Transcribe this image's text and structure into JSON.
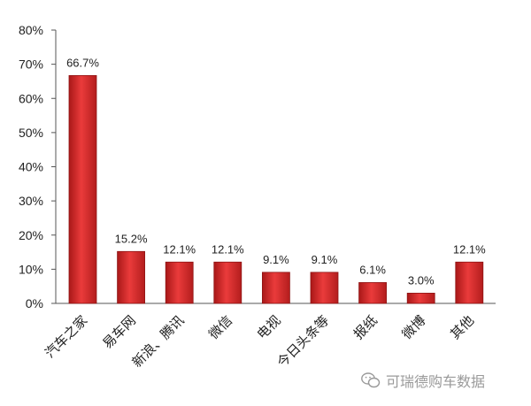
{
  "chart_data": {
    "type": "bar",
    "categories": [
      "汽车之家",
      "易车网",
      "新浪、腾讯",
      "微信",
      "电视",
      "今日头条等",
      "报纸",
      "微博",
      "其他"
    ],
    "values": [
      66.7,
      15.2,
      12.1,
      12.1,
      9.1,
      9.1,
      6.1,
      3.0,
      12.1
    ],
    "value_labels": [
      "66.7%",
      "15.2%",
      "12.1%",
      "12.1%",
      "9.1%",
      "9.1%",
      "6.1%",
      "3.0%",
      "12.1%"
    ],
    "ylim": [
      0,
      80
    ],
    "yticks": [
      "0%",
      "10%",
      "20%",
      "30%",
      "40%",
      "50%",
      "60%",
      "70%",
      "80%"
    ],
    "bar_color": "#d42a2a",
    "grid": false,
    "title": "",
    "xlabel": "",
    "ylabel": ""
  },
  "watermark": {
    "text": "可瑞德购车数据",
    "icon": "wechat-icon"
  }
}
